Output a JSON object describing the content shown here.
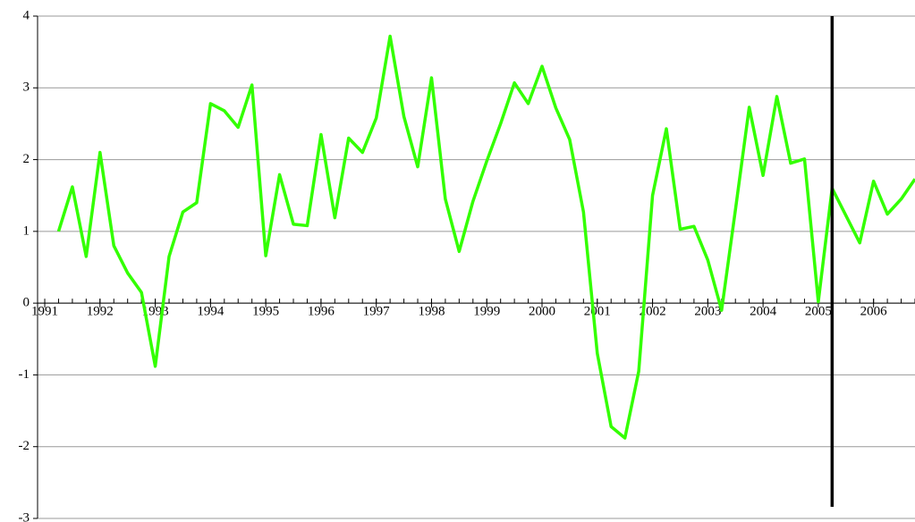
{
  "chart_data": {
    "type": "line",
    "x": [
      1991.25,
      1991.5,
      1991.75,
      1992,
      1992.25,
      1992.5,
      1992.75,
      1993,
      1993.25,
      1993.5,
      1993.75,
      1994,
      1994.25,
      1994.5,
      1994.75,
      1995,
      1995.25,
      1995.5,
      1995.75,
      1996,
      1996.25,
      1996.5,
      1996.75,
      1997,
      1997.25,
      1997.5,
      1997.75,
      1998,
      1998.25,
      1998.5,
      1998.75,
      1999,
      1999.25,
      1999.5,
      1999.75,
      2000,
      2000.25,
      2000.5,
      2000.75,
      2001,
      2001.25,
      2001.5,
      2001.75,
      2002,
      2002.25,
      2002.5,
      2002.75,
      2003,
      2003.25,
      2003.5,
      2003.75,
      2004,
      2004.25,
      2004.5,
      2004.75,
      2005,
      2005.25,
      2005.5,
      2005.75,
      2006,
      2006.25,
      2006.5,
      2006.75
    ],
    "series": [
      {
        "color": "#33ff00",
        "values": [
          1.0,
          1.62,
          0.65,
          2.1,
          0.8,
          0.42,
          0.15,
          -0.88,
          0.65,
          1.27,
          1.4,
          2.78,
          2.68,
          2.45,
          3.04,
          0.66,
          1.79,
          1.1,
          1.08,
          2.35,
          1.19,
          2.3,
          2.1,
          2.58,
          3.72,
          2.6,
          1.9,
          3.14,
          1.45,
          0.72,
          1.42,
          1.98,
          2.5,
          3.07,
          2.78,
          3.3,
          2.72,
          2.28,
          1.27,
          -0.7,
          -1.72,
          -1.88,
          -0.95,
          1.5,
          2.43,
          1.03,
          1.07,
          0.6,
          -0.1,
          1.3,
          2.73,
          1.78,
          2.88,
          1.95,
          2.01,
          0.02,
          1.6,
          1.22,
          0.84,
          1.7,
          1.24,
          1.45,
          1.73
        ]
      }
    ],
    "xlim": [
      1990.87,
      2006.75
    ],
    "xticks": [
      1991,
      1992,
      1993,
      1994,
      1995,
      1996,
      1997,
      1998,
      1999,
      2000,
      2001,
      2002,
      2003,
      2004,
      2005,
      2006
    ],
    "ylim": [
      -3,
      4
    ],
    "yticks": [
      -3,
      -2,
      -1,
      0,
      1,
      2,
      3,
      4
    ],
    "grid": true,
    "vline_x": 2005.25
  }
}
